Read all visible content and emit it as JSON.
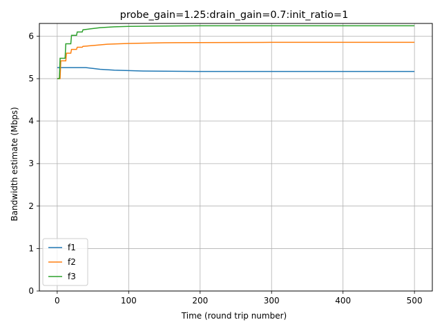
{
  "chart_data": {
    "type": "line",
    "title": "probe_gain=1.25:drain_gain=0.7:init_ratio=1",
    "xlabel": "Time (round trip number)",
    "ylabel": "Bandwidth estimate (Mbps)",
    "xlim": [
      -25,
      525
    ],
    "ylim": [
      0,
      6.3
    ],
    "xticks": [
      0,
      100,
      200,
      300,
      400,
      500
    ],
    "yticks": [
      0,
      1,
      2,
      3,
      4,
      5,
      6
    ],
    "grid": true,
    "legend_position": "lower-left",
    "series": [
      {
        "name": "f1",
        "color": "#1f77b4",
        "points": [
          [
            0,
            5.26
          ],
          [
            10,
            5.26
          ],
          [
            20,
            5.26
          ],
          [
            30,
            5.26
          ],
          [
            40,
            5.26
          ],
          [
            50,
            5.24
          ],
          [
            60,
            5.22
          ],
          [
            70,
            5.21
          ],
          [
            80,
            5.2
          ],
          [
            100,
            5.19
          ],
          [
            120,
            5.18
          ],
          [
            150,
            5.175
          ],
          [
            200,
            5.17
          ],
          [
            300,
            5.17
          ],
          [
            400,
            5.17
          ],
          [
            500,
            5.17
          ]
        ]
      },
      {
        "name": "f2",
        "color": "#ff7f0e",
        "points": [
          [
            0,
            5.0
          ],
          [
            4,
            5.0
          ],
          [
            5,
            5.42
          ],
          [
            12,
            5.42
          ],
          [
            13,
            5.6
          ],
          [
            19,
            5.6
          ],
          [
            20,
            5.69
          ],
          [
            27,
            5.69
          ],
          [
            28,
            5.74
          ],
          [
            35,
            5.74
          ],
          [
            36,
            5.76
          ],
          [
            50,
            5.78
          ],
          [
            70,
            5.81
          ],
          [
            100,
            5.83
          ],
          [
            150,
            5.845
          ],
          [
            200,
            5.85
          ],
          [
            300,
            5.855
          ],
          [
            400,
            5.855
          ],
          [
            500,
            5.855
          ]
        ]
      },
      {
        "name": "f3",
        "color": "#2ca02c",
        "points": [
          [
            0,
            5.0
          ],
          [
            3,
            5.0
          ],
          [
            4,
            5.48
          ],
          [
            11,
            5.48
          ],
          [
            12,
            5.82
          ],
          [
            19,
            5.82
          ],
          [
            20,
            6.02
          ],
          [
            27,
            6.02
          ],
          [
            28,
            6.1
          ],
          [
            35,
            6.1
          ],
          [
            36,
            6.15
          ],
          [
            45,
            6.17
          ],
          [
            60,
            6.2
          ],
          [
            80,
            6.22
          ],
          [
            100,
            6.23
          ],
          [
            150,
            6.24
          ],
          [
            200,
            6.245
          ],
          [
            300,
            6.245
          ],
          [
            400,
            6.245
          ],
          [
            500,
            6.245
          ]
        ]
      }
    ]
  }
}
